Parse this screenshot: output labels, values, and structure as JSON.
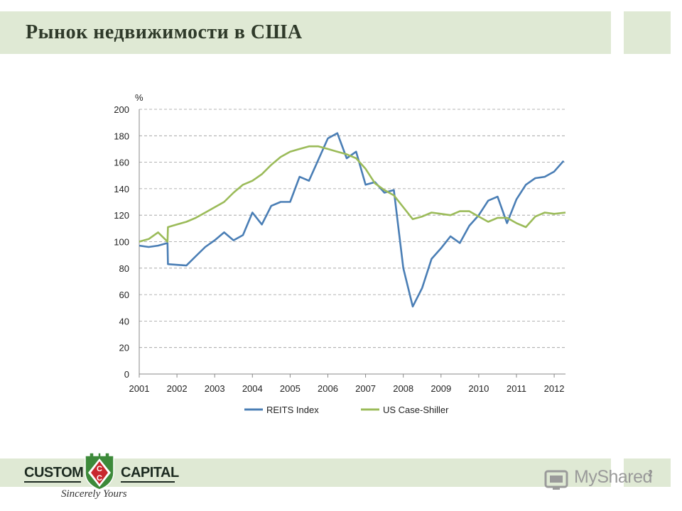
{
  "slide": {
    "title": "Рынок недвижимости в США",
    "page_number": "2"
  },
  "logo": {
    "left_word": "CUSTOM",
    "right_word": "CAPITAL",
    "tagline": "Sincerely Yours",
    "shield_letters": [
      "C",
      "C"
    ]
  },
  "watermark": {
    "text": "MyShared"
  },
  "colors": {
    "band": "#dfe9d4",
    "reits": "#4a7eb5",
    "case_shiller": "#9bbb59",
    "grid": "#9a9a9a",
    "shield_green": "#3d8a3a",
    "shield_red": "#c8282e"
  },
  "chart_data": {
    "type": "line",
    "title": "",
    "xlabel": "",
    "ylabel": "%",
    "x_ticks": [
      "2001",
      "2002",
      "2003",
      "2004",
      "2005",
      "2006",
      "2007",
      "2008",
      "2009",
      "2010",
      "2011",
      "2012"
    ],
    "y_ticks": [
      0,
      20,
      40,
      60,
      80,
      100,
      120,
      140,
      160,
      180,
      200
    ],
    "xlim": [
      2001.0,
      2012.3
    ],
    "ylim": [
      0,
      200
    ],
    "grid": "horizontal dashed",
    "legend": "bottom",
    "series": [
      {
        "name": "REITS Index",
        "color": "#4a7eb5",
        "points": [
          [
            2001.0,
            97
          ],
          [
            2001.25,
            96
          ],
          [
            2001.5,
            97
          ],
          [
            2001.75,
            99
          ],
          [
            2001.76,
            83
          ],
          [
            2002.25,
            82
          ],
          [
            2002.5,
            89
          ],
          [
            2002.75,
            96
          ],
          [
            2003.0,
            101
          ],
          [
            2003.25,
            107
          ],
          [
            2003.5,
            101
          ],
          [
            2003.75,
            105
          ],
          [
            2004.0,
            122
          ],
          [
            2004.25,
            113
          ],
          [
            2004.5,
            127
          ],
          [
            2004.75,
            130
          ],
          [
            2005.0,
            130
          ],
          [
            2005.25,
            149
          ],
          [
            2005.5,
            146
          ],
          [
            2005.75,
            162
          ],
          [
            2006.0,
            178
          ],
          [
            2006.25,
            182
          ],
          [
            2006.5,
            163
          ],
          [
            2006.75,
            168
          ],
          [
            2007.0,
            143
          ],
          [
            2007.25,
            145
          ],
          [
            2007.5,
            137
          ],
          [
            2007.75,
            139
          ],
          [
            2008.0,
            80
          ],
          [
            2008.25,
            51
          ],
          [
            2008.5,
            65
          ],
          [
            2008.75,
            87
          ],
          [
            2009.0,
            95
          ],
          [
            2009.25,
            104
          ],
          [
            2009.5,
            99
          ],
          [
            2009.75,
            112
          ],
          [
            2010.0,
            120
          ],
          [
            2010.25,
            131
          ],
          [
            2010.5,
            134
          ],
          [
            2010.75,
            114
          ],
          [
            2011.0,
            132
          ],
          [
            2011.25,
            143
          ],
          [
            2011.5,
            148
          ],
          [
            2011.75,
            149
          ],
          [
            2012.0,
            153
          ],
          [
            2012.25,
            161
          ]
        ]
      },
      {
        "name": "US Case-Shiller",
        "color": "#9bbb59",
        "points": [
          [
            2001.0,
            100
          ],
          [
            2001.25,
            102
          ],
          [
            2001.5,
            107
          ],
          [
            2001.75,
            100
          ],
          [
            2001.76,
            111
          ],
          [
            2002.0,
            113
          ],
          [
            2002.25,
            115
          ],
          [
            2002.5,
            118
          ],
          [
            2002.75,
            122
          ],
          [
            2003.0,
            126
          ],
          [
            2003.25,
            130
          ],
          [
            2003.5,
            137
          ],
          [
            2003.75,
            143
          ],
          [
            2004.0,
            146
          ],
          [
            2004.25,
            151
          ],
          [
            2004.5,
            158
          ],
          [
            2004.75,
            164
          ],
          [
            2005.0,
            168
          ],
          [
            2005.25,
            170
          ],
          [
            2005.5,
            172
          ],
          [
            2005.75,
            172
          ],
          [
            2006.0,
            170
          ],
          [
            2006.25,
            168
          ],
          [
            2006.5,
            166
          ],
          [
            2006.75,
            163
          ],
          [
            2007.0,
            155
          ],
          [
            2007.25,
            144
          ],
          [
            2007.5,
            139
          ],
          [
            2007.75,
            135
          ],
          [
            2008.0,
            126
          ],
          [
            2008.25,
            117
          ],
          [
            2008.5,
            119
          ],
          [
            2008.75,
            122
          ],
          [
            2009.0,
            121
          ],
          [
            2009.25,
            120
          ],
          [
            2009.5,
            123
          ],
          [
            2009.75,
            123
          ],
          [
            2010.0,
            119
          ],
          [
            2010.25,
            115
          ],
          [
            2010.5,
            118
          ],
          [
            2010.75,
            118
          ],
          [
            2011.0,
            114
          ],
          [
            2011.25,
            111
          ],
          [
            2011.5,
            119
          ],
          [
            2011.75,
            122
          ],
          [
            2012.0,
            121
          ],
          [
            2012.3,
            122
          ]
        ]
      }
    ]
  }
}
